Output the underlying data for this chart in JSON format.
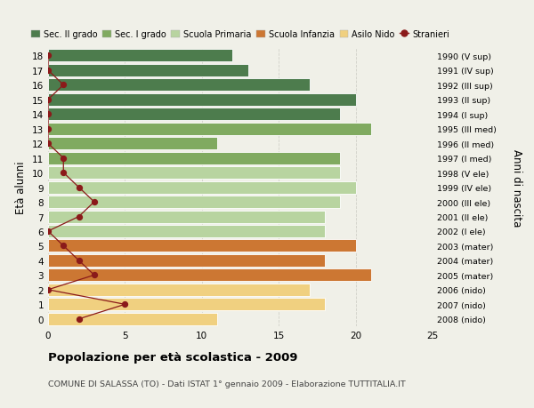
{
  "ages": [
    18,
    17,
    16,
    15,
    14,
    13,
    12,
    11,
    10,
    9,
    8,
    7,
    6,
    5,
    4,
    3,
    2,
    1,
    0
  ],
  "right_labels": [
    "1990 (V sup)",
    "1991 (IV sup)",
    "1992 (III sup)",
    "1993 (II sup)",
    "1994 (I sup)",
    "1995 (III med)",
    "1996 (II med)",
    "1997 (I med)",
    "1998 (V ele)",
    "1999 (IV ele)",
    "2000 (III ele)",
    "2001 (II ele)",
    "2002 (I ele)",
    "2003 (mater)",
    "2004 (mater)",
    "2005 (mater)",
    "2006 (nido)",
    "2007 (nido)",
    "2008 (nido)"
  ],
  "bar_values": [
    12,
    13,
    17,
    20,
    19,
    21,
    11,
    19,
    19,
    20,
    19,
    18,
    18,
    20,
    18,
    21,
    17,
    18,
    11
  ],
  "bar_colors": [
    "#4d7c4d",
    "#4d7c4d",
    "#4d7c4d",
    "#4d7c4d",
    "#4d7c4d",
    "#80aa60",
    "#80aa60",
    "#80aa60",
    "#b8d4a0",
    "#b8d4a0",
    "#b8d4a0",
    "#b8d4a0",
    "#b8d4a0",
    "#cc7733",
    "#cc7733",
    "#cc7733",
    "#f0d080",
    "#f0d080",
    "#f0d080"
  ],
  "stranieri_values": [
    0,
    0,
    1,
    0,
    0,
    0,
    0,
    1,
    1,
    2,
    3,
    2,
    0,
    1,
    2,
    3,
    0,
    5,
    2
  ],
  "legend_labels": [
    "Sec. II grado",
    "Sec. I grado",
    "Scuola Primaria",
    "Scuola Infanzia",
    "Asilo Nido",
    "Stranieri"
  ],
  "legend_colors": [
    "#4d7c4d",
    "#80aa60",
    "#b8d4a0",
    "#cc7733",
    "#f0d080",
    "#8b1a1a"
  ],
  "ylabel_left": "Età alunni",
  "ylabel_right": "Anni di nascita",
  "title": "Popolazione per età scolastica - 2009",
  "subtitle": "COMUNE DI SALASSA (TO) - Dati ISTAT 1° gennaio 2009 - Elaborazione TUTTITALIA.IT",
  "xlim": [
    0,
    25
  ],
  "xticks": [
    0,
    5,
    10,
    15,
    20,
    25
  ],
  "background_color": "#f0f0e8",
  "grid_color": "#d0d0c8",
  "bar_edge_color": "#ffffff",
  "stranieri_color": "#8b1a1a",
  "bar_height": 0.85
}
